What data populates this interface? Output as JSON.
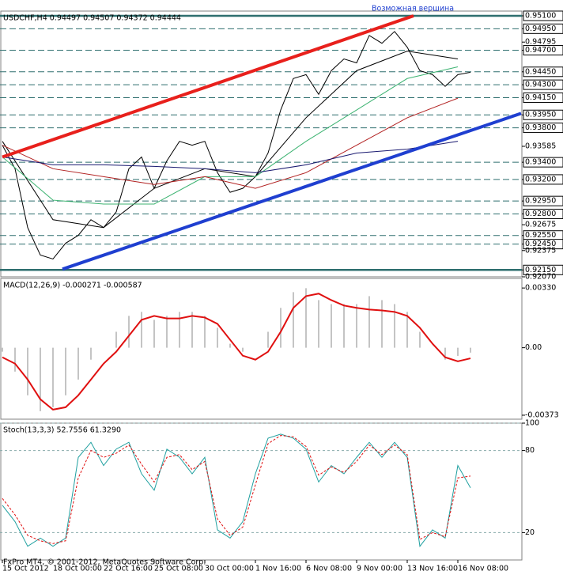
{
  "chart_data": [
    {
      "type": "line",
      "title": "USDCHF,H4  0.94497 0.94507 0.94372 0.94444",
      "annotation": "Возможная вершина",
      "xlim": [
        -0.75,
        164.25
      ],
      "ylim": [
        0.9207,
        0.95155
      ],
      "yticks": [
        {
          "value": 0.951,
          "label": "0.95100"
        },
        {
          "value": 0.9495,
          "label": "0.94950"
        },
        {
          "value": 0.94795,
          "label": "0.94795"
        },
        {
          "value": 0.947,
          "label": "0.94700"
        },
        {
          "value": 0.9445,
          "label": "0.94450"
        },
        {
          "value": 0.943,
          "label": "0.94300"
        },
        {
          "value": 0.9415,
          "label": "0.94150"
        },
        {
          "value": 0.9395,
          "label": "0.93950"
        },
        {
          "value": 0.938,
          "label": "0.93800"
        },
        {
          "value": 0.93585,
          "label": "0.93585"
        },
        {
          "value": 0.934,
          "label": "0.93400"
        },
        {
          "value": 0.932,
          "label": "0.93200"
        },
        {
          "value": 0.9295,
          "label": "0.92950"
        },
        {
          "value": 0.928,
          "label": "0.92800"
        },
        {
          "value": 0.92675,
          "label": "0.92675"
        },
        {
          "value": 0.9255,
          "label": "0.92550"
        },
        {
          "value": 0.9245,
          "label": "0.92450"
        },
        {
          "value": 0.92375,
          "label": "0.92375"
        },
        {
          "value": 0.9215,
          "label": "0.92150"
        },
        {
          "value": 0.9207,
          "label": "0.92070"
        }
      ],
      "levels": [
        0.951,
        0.9495,
        0.947,
        0.9445,
        0.943,
        0.9415,
        0.9395,
        0.938,
        0.934,
        0.932,
        0.9295,
        0.928,
        0.9255,
        0.9245,
        0.9215
      ],
      "level_color": "#2f6f6f",
      "series": [
        {
          "color": "#000000",
          "x": [
            0,
            4,
            8,
            12,
            16,
            20,
            24,
            28,
            32,
            36,
            40,
            44,
            48,
            52,
            56,
            60,
            64,
            68,
            72,
            76,
            80,
            84,
            88,
            92,
            96,
            100,
            104,
            108,
            112,
            116,
            120,
            124,
            128,
            132,
            136,
            140,
            144,
            148
          ],
          "values": [
            0.93598,
            0.93325,
            0.92642,
            0.92323,
            0.92277,
            0.9246,
            0.92551,
            0.92733,
            0.92642,
            0.92824,
            0.93325,
            0.93461,
            0.93097,
            0.93416,
            0.93643,
            0.93598,
            0.93643,
            0.93279,
            0.93051,
            0.93097,
            0.93233,
            0.93507,
            0.94007,
            0.94372,
            0.94417,
            0.94189,
            0.94463,
            0.94599,
            0.94554,
            0.94872,
            0.94781,
            0.94918,
            0.94736,
            0.94463,
            0.94417,
            0.94281,
            0.94417,
            0.94444
          ]
        },
        {
          "color": "#000000",
          "x": [
            0,
            16,
            32,
            48,
            64,
            80,
            96,
            112,
            128,
            144
          ],
          "values": [
            0.93643,
            0.92733,
            0.92642,
            0.93097,
            0.93325,
            0.93233,
            0.93916,
            0.94463,
            0.9469,
            0.94599
          ]
        },
        {
          "color": "#3cb371",
          "x": [
            0,
            16,
            32,
            48,
            64,
            80,
            96,
            112,
            128,
            144
          ],
          "values": [
            0.93461,
            0.9296,
            0.92915,
            0.92915,
            0.93233,
            0.93233,
            0.93643,
            0.94007,
            0.94372,
            0.94508
          ]
        },
        {
          "color": "#b22222",
          "x": [
            0,
            16,
            32,
            48,
            64,
            80,
            96,
            112,
            128,
            144
          ],
          "values": [
            0.93598,
            0.93325,
            0.93233,
            0.93142,
            0.93233,
            0.93097,
            0.93279,
            0.93598,
            0.93916,
            0.94144
          ]
        },
        {
          "color": "#191970",
          "x": [
            0,
            16,
            32,
            48,
            64,
            80,
            96,
            112,
            128,
            144
          ],
          "values": [
            0.93461,
            0.9337,
            0.9337,
            0.93352,
            0.93325,
            0.93279,
            0.9337,
            0.93507,
            0.93552,
            0.93643
          ]
        },
        {
          "color": "#e8201c",
          "line_width": 4,
          "x": [
            0,
            130
          ],
          "values": [
            0.93461,
            0.951
          ]
        },
        {
          "color": "#1f3fd0",
          "line_width": 4,
          "x": [
            19,
            164
          ],
          "values": [
            0.92159,
            0.93967
          ]
        }
      ]
    },
    {
      "type": "macd",
      "title": "MACD(12,26,9) -0.000271 -0.000587",
      "xlim": [
        -0.75,
        164.25
      ],
      "ylim": [
        -0.00395,
        0.00383
      ],
      "yticks": [
        {
          "value": 0.0033,
          "label": "0.00330"
        },
        {
          "value": 0,
          "label": "0.00"
        },
        {
          "value": -0.00373,
          "label": "-0.00373"
        }
      ],
      "x": [
        0,
        4,
        8,
        12,
        16,
        20,
        24,
        28,
        32,
        36,
        40,
        44,
        48,
        52,
        56,
        60,
        64,
        68,
        72,
        76,
        80,
        84,
        88,
        92,
        96,
        100,
        104,
        108,
        112,
        116,
        120,
        124,
        128,
        132,
        136,
        140,
        144,
        148
      ],
      "values": [
        -0.00022,
        -0.00132,
        -0.00263,
        -0.00351,
        -0.00329,
        -0.00263,
        -0.00176,
        -0.00066,
        0,
        0.00088,
        0.00176,
        0.00198,
        0.00154,
        0.00176,
        0.00198,
        0.00198,
        0.00176,
        0.0011,
        0.00022,
        -0.00022,
        0,
        0.00088,
        0.0022,
        0.00307,
        0.00329,
        0.00263,
        0.00241,
        0.00241,
        0.00241,
        0.00285,
        0.00263,
        0.00241,
        0.00198,
        0.00088,
        0,
        -0.00066,
        -0.00045,
        -0.000271
      ],
      "color": "#b0b0b0",
      "signal": {
        "color": "#e01010",
        "values": [
          -0.00053,
          -0.00088,
          -0.00176,
          -0.00285,
          -0.00342,
          -0.00329,
          -0.00263,
          -0.00176,
          -0.00088,
          -0.00022,
          0.00066,
          0.00154,
          0.00176,
          0.00162,
          0.00162,
          0.00176,
          0.00167,
          0.00132,
          0.00044,
          -0.00044,
          -0.00066,
          -0.00022,
          0.00088,
          0.0022,
          0.00285,
          0.00299,
          0.00263,
          0.00233,
          0.0022,
          0.00211,
          0.00206,
          0.00198,
          0.00176,
          0.0011,
          0.00022,
          -0.00053,
          -0.00075,
          -0.000587
        ]
      }
    },
    {
      "type": "line",
      "title": "Stoch(13,3,3) 52.7556 61.3290",
      "xlim": [
        -0.75,
        164.25
      ],
      "ylim": [
        0,
        100
      ],
      "yticks": [
        100,
        80,
        20
      ],
      "grid": true,
      "xticks": [
        {
          "value": 0,
          "label": "15 Oct 2012"
        },
        {
          "value": 16,
          "label": "18 Oct 00:00"
        },
        {
          "value": 32,
          "label": "22 Oct 16:00"
        },
        {
          "value": 48,
          "label": "25 Oct 08:00"
        },
        {
          "value": 64,
          "label": "30 Oct 00:00"
        },
        {
          "value": 80,
          "label": "1 Nov 16:00"
        },
        {
          "value": 96,
          "label": "6 Nov 08:00"
        },
        {
          "value": 112,
          "label": "9 Nov 00:00"
        },
        {
          "value": 128,
          "label": "13 Nov 16:00"
        },
        {
          "value": 144,
          "label": "16 Nov 08:00"
        }
      ],
      "series": [
        {
          "color": "#20a0a0",
          "x": [
            0,
            4,
            8,
            12,
            16,
            20,
            24,
            28,
            32,
            36,
            40,
            44,
            48,
            52,
            56,
            60,
            64,
            68,
            72,
            76,
            80,
            84,
            88,
            92,
            96,
            100,
            104,
            108,
            112,
            116,
            120,
            124,
            128,
            132,
            136,
            140,
            144,
            148
          ],
          "values": [
            40,
            28,
            10,
            16,
            10,
            16,
            75,
            86,
            69,
            81,
            86,
            63,
            51,
            81,
            75,
            63,
            75,
            22,
            16,
            28,
            63,
            89,
            92,
            89,
            81,
            57,
            69,
            63,
            75,
            86,
            75,
            86,
            75,
            10,
            22,
            16,
            69,
            52.7556
          ]
        },
        {
          "color": "#e01010",
          "dashed": true,
          "x": [
            0,
            4,
            8,
            12,
            16,
            20,
            24,
            28,
            32,
            36,
            40,
            44,
            48,
            52,
            56,
            60,
            64,
            68,
            72,
            76,
            80,
            84,
            88,
            92,
            96,
            100,
            104,
            108,
            112,
            116,
            120,
            124,
            128,
            132,
            136,
            140,
            144,
            148
          ],
          "values": [
            45,
            33,
            18,
            14,
            12,
            14,
            60,
            80,
            75,
            78,
            84,
            70,
            57,
            75,
            77,
            66,
            72,
            30,
            18,
            24,
            55,
            85,
            91,
            90,
            83,
            62,
            68,
            64,
            72,
            84,
            77,
            84,
            77,
            15,
            20,
            17,
            60,
            61.329
          ]
        }
      ]
    }
  ],
  "footer": "FxPro MT4, © 2001-2012, MetaQuotes Software Corp."
}
